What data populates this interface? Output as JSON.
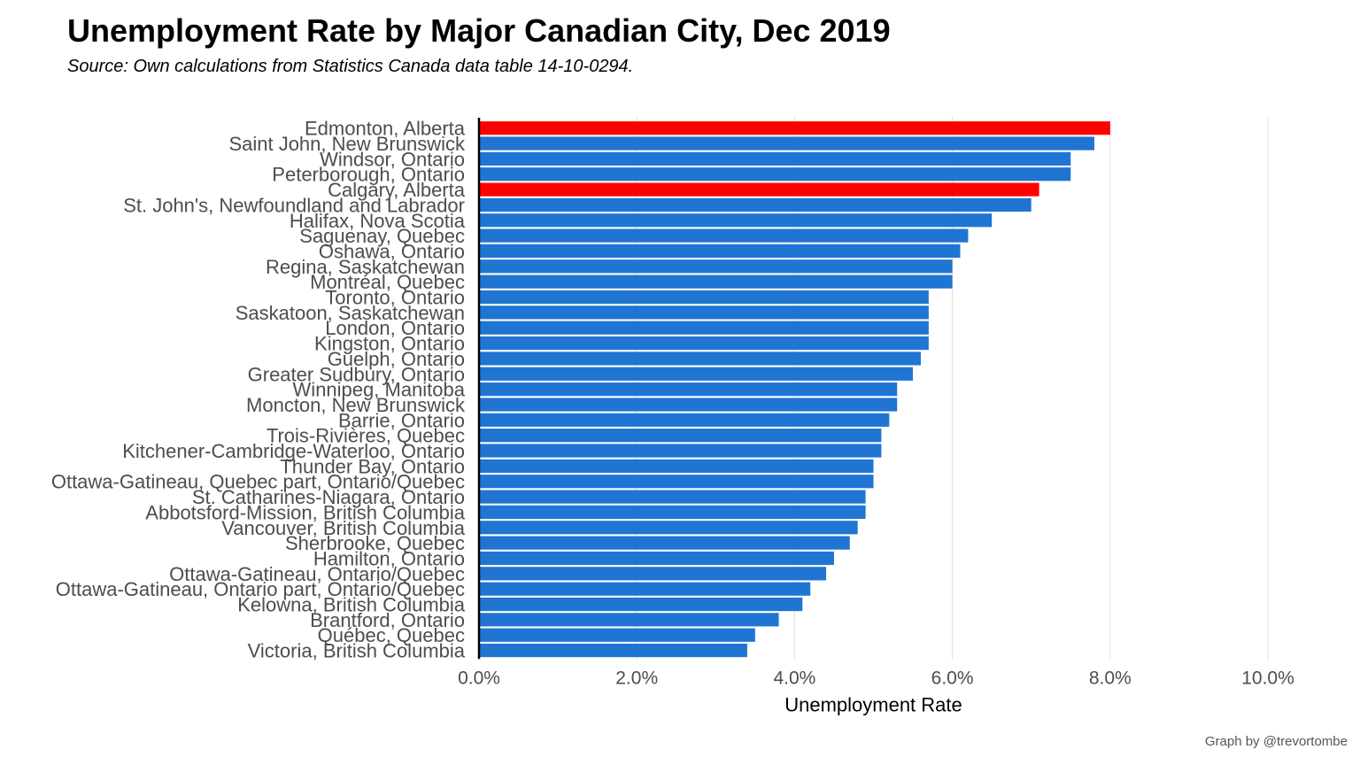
{
  "chart_data": {
    "type": "bar",
    "orientation": "horizontal",
    "title": "Unemployment Rate by Major Canadian City, Dec 2019",
    "subtitle": "Source: Own calculations from Statistics Canada data table 14-10-0294.",
    "caption": "Graph by @trevortombe",
    "xlabel": "Unemployment Rate",
    "ylabel": "",
    "xlim": [
      0,
      10
    ],
    "x_ticks": [
      0,
      2,
      4,
      6,
      8,
      10
    ],
    "x_tick_labels": [
      "0.0%",
      "2.0%",
      "4.0%",
      "6.0%",
      "8.0%",
      "10.0%"
    ],
    "grid": "vertical major",
    "colors": {
      "default": "#1f75d1",
      "highlight": "#ff0000"
    },
    "categories": [
      "Edmonton, Alberta",
      "Saint John, New Brunswick",
      "Windsor, Ontario",
      "Peterborough, Ontario",
      "Calgary, Alberta",
      "St. John's, Newfoundland and Labrador",
      "Halifax, Nova Scotia",
      "Saguenay, Quebec",
      "Oshawa, Ontario",
      "Regina, Saskatchewan",
      "Montréal, Quebec",
      "Toronto, Ontario",
      "Saskatoon, Saskatchewan",
      "London, Ontario",
      "Kingston, Ontario",
      "Guelph, Ontario",
      "Greater Sudbury, Ontario",
      "Winnipeg, Manitoba",
      "Moncton, New Brunswick",
      "Barrie, Ontario",
      "Trois-Rivières, Quebec",
      "Kitchener-Cambridge-Waterloo, Ontario",
      "Thunder Bay, Ontario",
      "Ottawa-Gatineau, Quebec part, Ontario/Quebec",
      "St. Catharines-Niagara, Ontario",
      "Abbotsford-Mission, British Columbia",
      "Vancouver, British Columbia",
      "Sherbrooke, Quebec",
      "Hamilton, Ontario",
      "Ottawa-Gatineau, Ontario/Quebec",
      "Ottawa-Gatineau, Ontario part, Ontario/Quebec",
      "Kelowna, British Columbia",
      "Brantford, Ontario",
      "Québec, Quebec",
      "Victoria, British Columbia"
    ],
    "values": [
      8.0,
      7.8,
      7.5,
      7.5,
      7.1,
      7.0,
      6.5,
      6.2,
      6.1,
      6.0,
      6.0,
      5.7,
      5.7,
      5.7,
      5.7,
      5.6,
      5.5,
      5.3,
      5.3,
      5.2,
      5.1,
      5.1,
      5.0,
      5.0,
      4.9,
      4.9,
      4.8,
      4.7,
      4.5,
      4.4,
      4.2,
      4.1,
      3.8,
      3.5,
      3.4
    ],
    "highlighted": [
      "Edmonton, Alberta",
      "Calgary, Alberta"
    ]
  }
}
